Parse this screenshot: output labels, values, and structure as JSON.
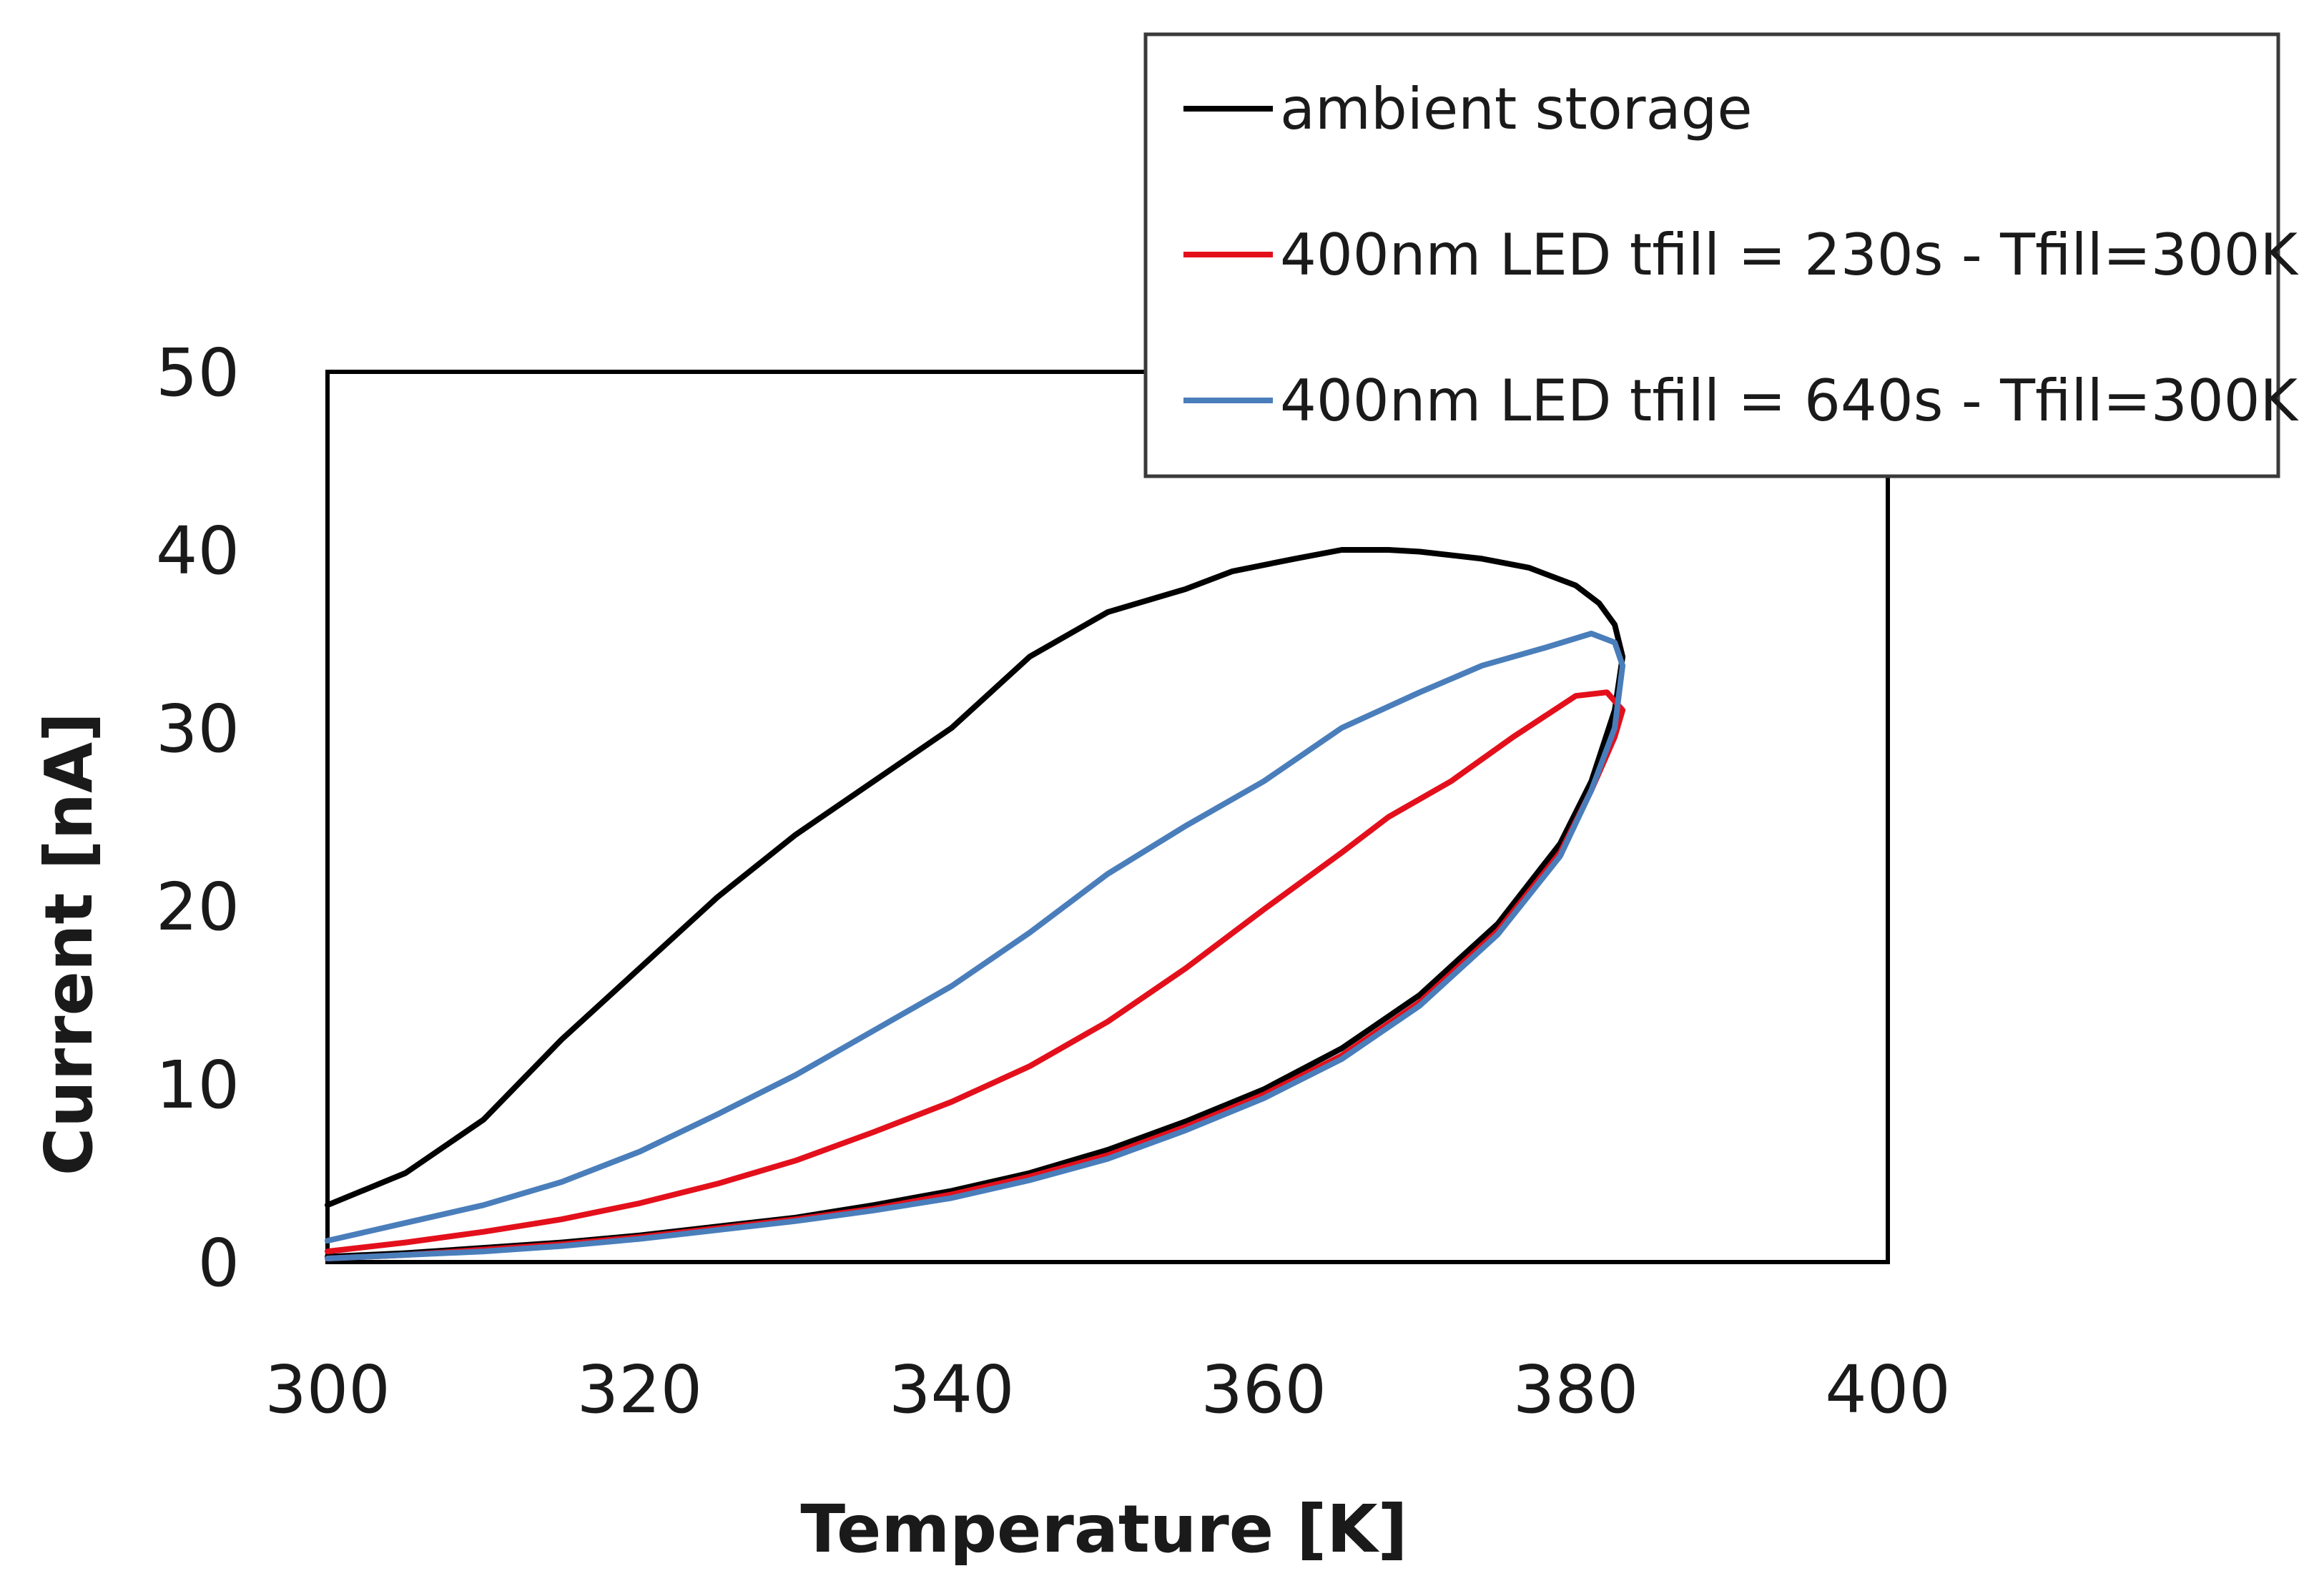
{
  "chart_data": {
    "type": "line",
    "title": "",
    "xlabel": "Temperature [K]",
    "ylabel": "Current [nA]",
    "xlim": [
      300,
      400
    ],
    "ylim": [
      0,
      50
    ],
    "xticks": [
      300,
      320,
      340,
      360,
      380,
      400
    ],
    "yticks": [
      0,
      10,
      20,
      30,
      40,
      50
    ],
    "grid": false,
    "legend_position": "top-right",
    "series": [
      {
        "name": "ambient storage",
        "color": "#000000",
        "points": [
          [
            300.0,
            0.3
          ],
          [
            305,
            0.5
          ],
          [
            310,
            0.8
          ],
          [
            315,
            1.1
          ],
          [
            320,
            1.5
          ],
          [
            325,
            2.0
          ],
          [
            330,
            2.5
          ],
          [
            335,
            3.2
          ],
          [
            340,
            4.0
          ],
          [
            345,
            5.0
          ],
          [
            350,
            6.3
          ],
          [
            355,
            7.9
          ],
          [
            360,
            9.7
          ],
          [
            365,
            12.0
          ],
          [
            370,
            15.0
          ],
          [
            375,
            19.0
          ],
          [
            379,
            23.5
          ],
          [
            381,
            27.0
          ],
          [
            382.5,
            31.0
          ],
          [
            383,
            34.0
          ],
          [
            382.5,
            35.8
          ],
          [
            381.5,
            37.0
          ],
          [
            380,
            38.0
          ],
          [
            377,
            39.0
          ],
          [
            374,
            39.5
          ],
          [
            370,
            39.9
          ],
          [
            368,
            40.0
          ],
          [
            365,
            40.0
          ],
          [
            362,
            39.5
          ],
          [
            358,
            38.8
          ],
          [
            355,
            37.8
          ],
          [
            350,
            36.5
          ],
          [
            345,
            34.0
          ],
          [
            340,
            30.0
          ],
          [
            335,
            27.0
          ],
          [
            330,
            24.0
          ],
          [
            325,
            20.5
          ],
          [
            320,
            16.5
          ],
          [
            315,
            12.5
          ],
          [
            310,
            8.0
          ],
          [
            305,
            5.0
          ],
          [
            300,
            3.2
          ]
        ]
      },
      {
        "name": "400nm LED tfill = 230s - Tfill=300K",
        "color": "#e3101c",
        "points": [
          [
            300.0,
            0.2
          ],
          [
            305,
            0.4
          ],
          [
            310,
            0.7
          ],
          [
            315,
            1.0
          ],
          [
            320,
            1.4
          ],
          [
            325,
            1.9
          ],
          [
            330,
            2.4
          ],
          [
            335,
            3.0
          ],
          [
            340,
            3.8
          ],
          [
            345,
            4.8
          ],
          [
            350,
            6.0
          ],
          [
            355,
            7.6
          ],
          [
            360,
            9.4
          ],
          [
            365,
            11.6
          ],
          [
            370,
            14.6
          ],
          [
            375,
            18.6
          ],
          [
            379,
            23.0
          ],
          [
            381,
            26.5
          ],
          [
            382.5,
            29.5
          ],
          [
            383,
            31.0
          ],
          [
            382,
            32.0
          ],
          [
            380,
            31.8
          ],
          [
            376,
            29.5
          ],
          [
            372,
            27.0
          ],
          [
            368,
            25.0
          ],
          [
            365,
            23.0
          ],
          [
            360,
            19.8
          ],
          [
            355,
            16.5
          ],
          [
            350,
            13.5
          ],
          [
            345,
            11.0
          ],
          [
            340,
            9.0
          ],
          [
            335,
            7.3
          ],
          [
            330,
            5.7
          ],
          [
            325,
            4.4
          ],
          [
            320,
            3.3
          ],
          [
            315,
            2.4
          ],
          [
            310,
            1.7
          ],
          [
            305,
            1.1
          ],
          [
            300,
            0.6
          ]
        ]
      },
      {
        "name": "400nm LED tfill = 640s - Tfill=300K",
        "color": "#4a7ebb",
        "points": [
          [
            300.0,
            0.2
          ],
          [
            305,
            0.4
          ],
          [
            310,
            0.6
          ],
          [
            315,
            0.9
          ],
          [
            320,
            1.3
          ],
          [
            325,
            1.8
          ],
          [
            330,
            2.3
          ],
          [
            335,
            2.9
          ],
          [
            340,
            3.6
          ],
          [
            345,
            4.6
          ],
          [
            350,
            5.8
          ],
          [
            355,
            7.4
          ],
          [
            360,
            9.2
          ],
          [
            365,
            11.4
          ],
          [
            370,
            14.4
          ],
          [
            375,
            18.4
          ],
          [
            379,
            22.8
          ],
          [
            381,
            26.5
          ],
          [
            382.5,
            30.0
          ],
          [
            383,
            33.5
          ],
          [
            382.5,
            34.8
          ],
          [
            381,
            35.3
          ],
          [
            378,
            34.5
          ],
          [
            374,
            33.5
          ],
          [
            370,
            32.0
          ],
          [
            365,
            30.0
          ],
          [
            360,
            27.0
          ],
          [
            355,
            24.5
          ],
          [
            350,
            21.8
          ],
          [
            345,
            18.5
          ],
          [
            340,
            15.5
          ],
          [
            335,
            13.0
          ],
          [
            330,
            10.5
          ],
          [
            325,
            8.3
          ],
          [
            320,
            6.2
          ],
          [
            315,
            4.5
          ],
          [
            310,
            3.2
          ],
          [
            305,
            2.2
          ],
          [
            300,
            1.2
          ]
        ]
      }
    ]
  }
}
